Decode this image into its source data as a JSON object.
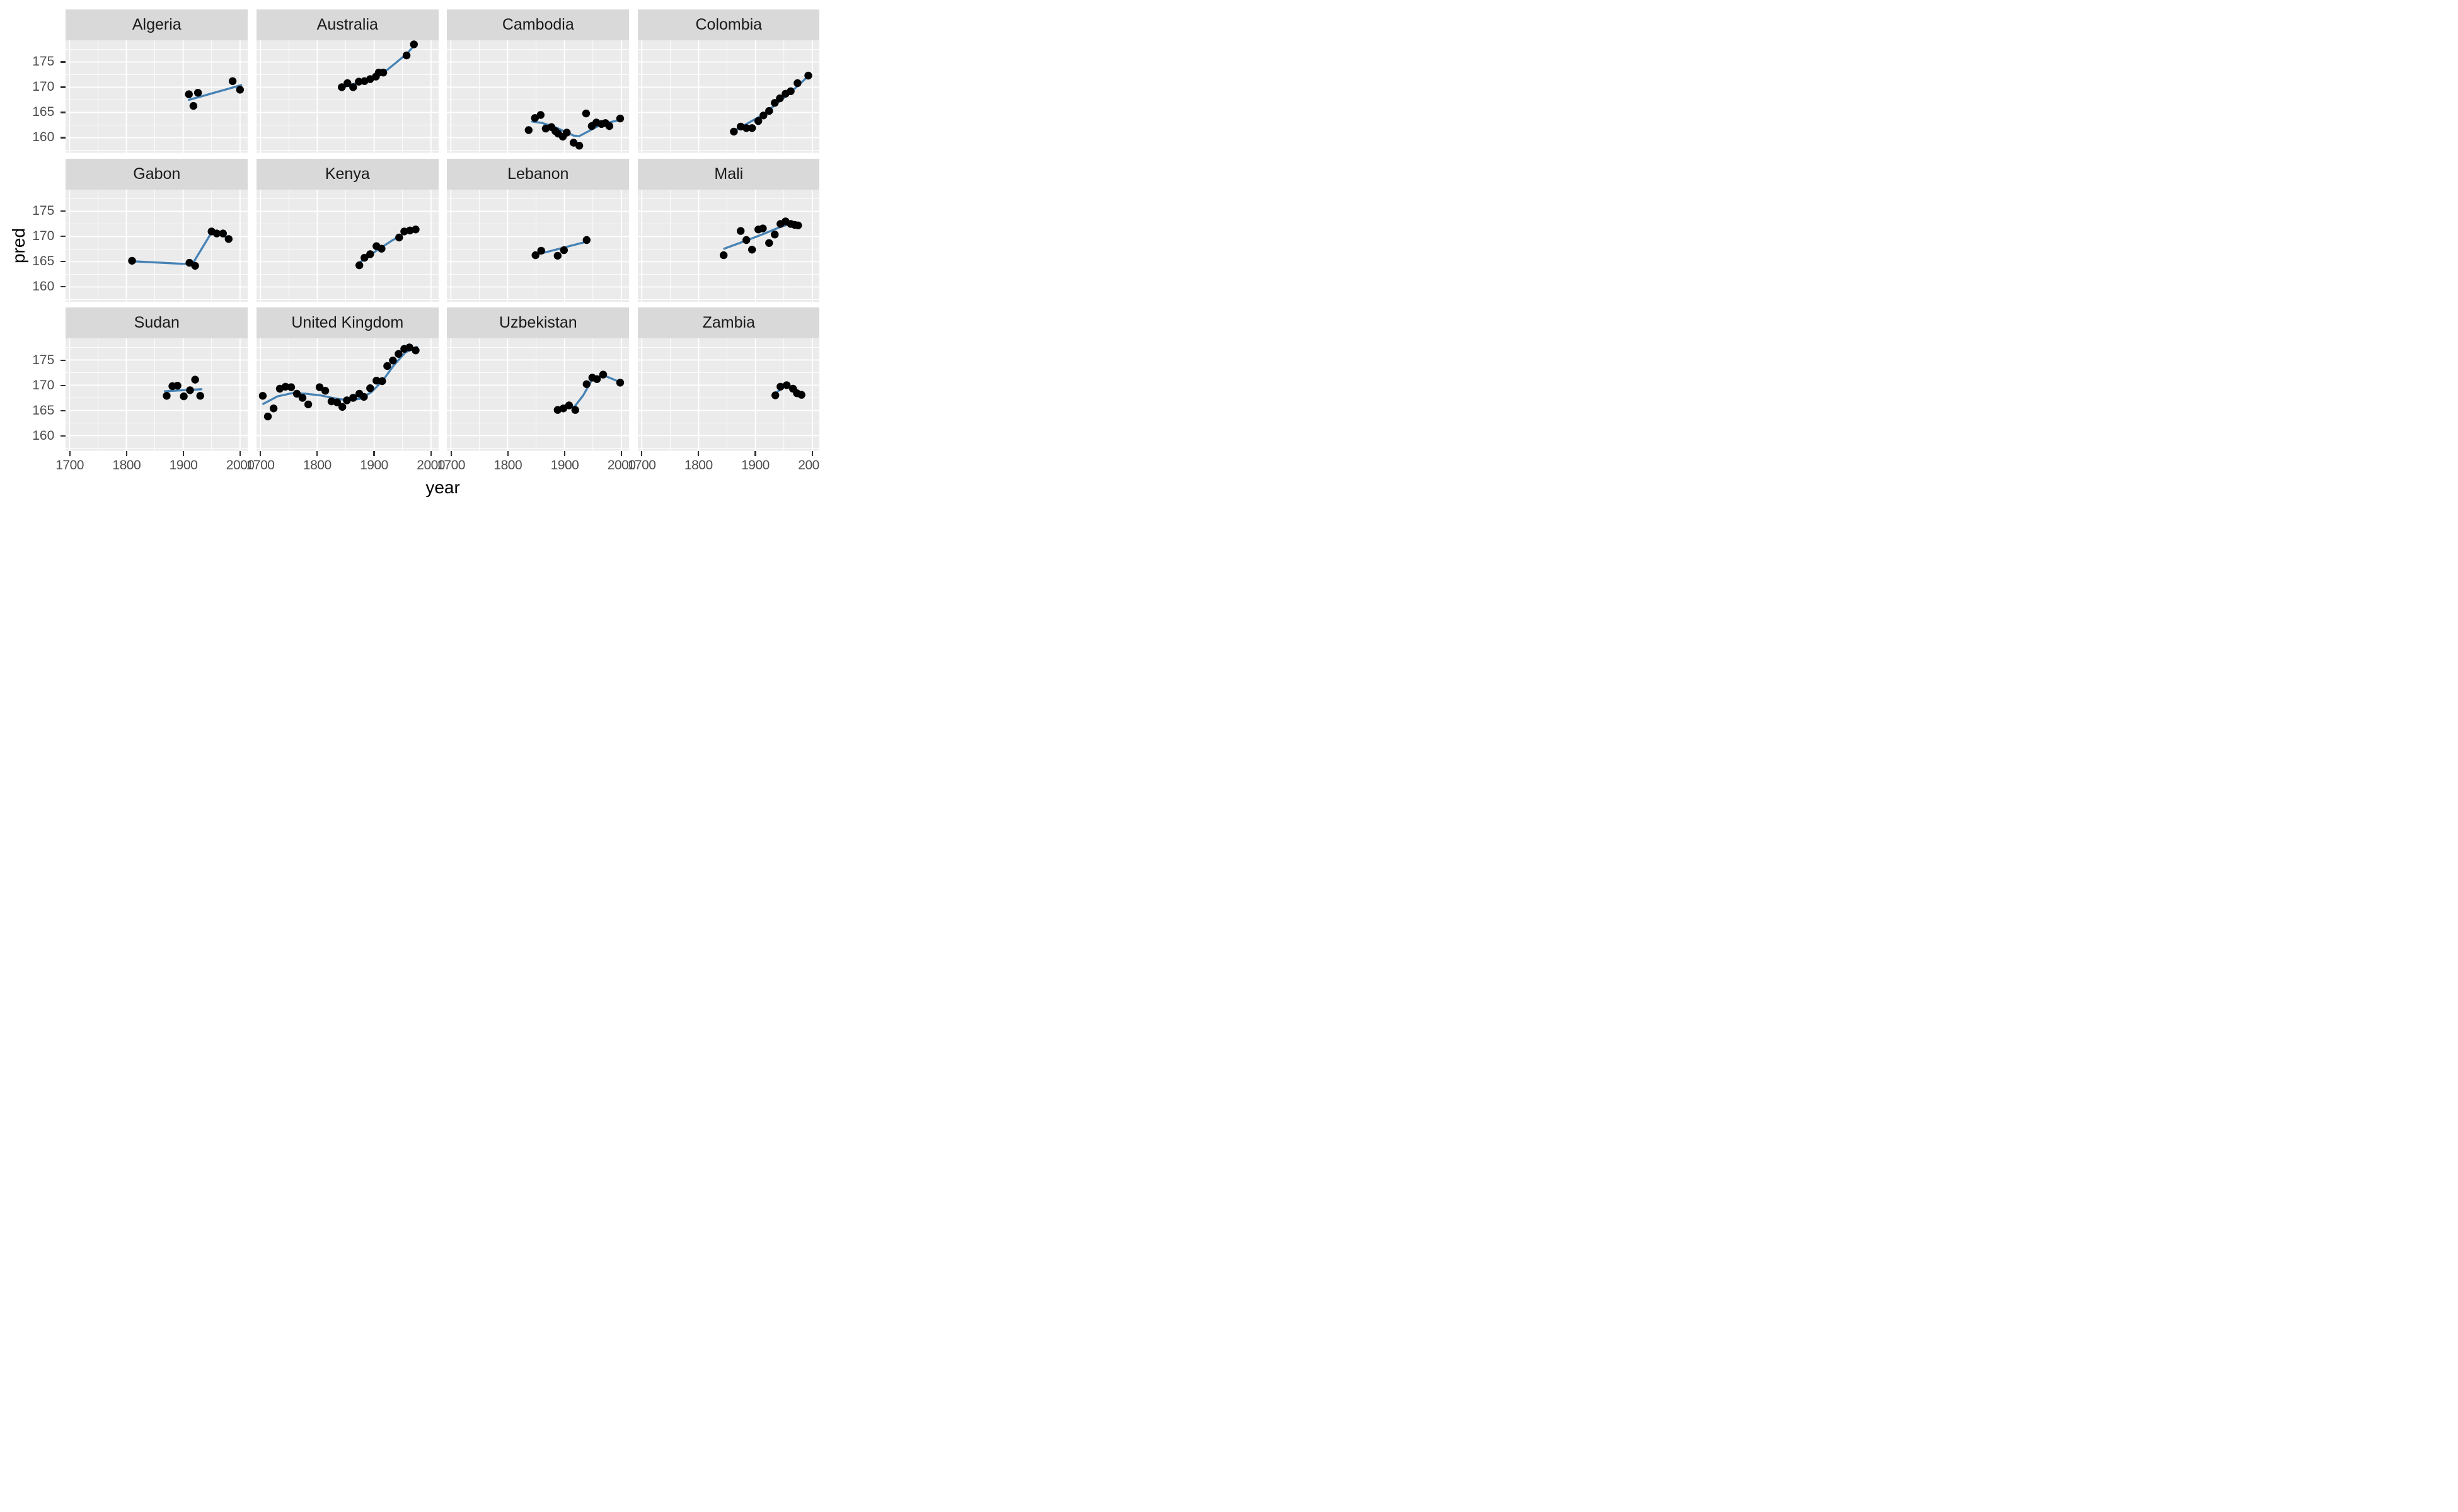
{
  "chart_data": {
    "type": "scatter",
    "title": "",
    "xlabel": "year",
    "ylabel": "pred",
    "legend": false,
    "grid": true,
    "x_ticks": [
      1700,
      1800,
      1900,
      2000
    ],
    "x_minor_gridlines": [
      1750,
      1850,
      1950
    ],
    "y_ticks": [
      175,
      170,
      165,
      160
    ],
    "y_minor_gridlines": [
      157.5,
      162.5,
      167.5,
      172.5,
      177.5
    ],
    "x_domain": [
      1693,
      2013.5
    ],
    "y_domain": [
      157.0,
      179.3
    ],
    "colors": {
      "point": "#000000",
      "smooth_line": "#4682B4",
      "panel_background": "#EBEBEB",
      "grid_major": "#FFFFFF",
      "grid_minor": "#FFFFFF",
      "strip_background": "#D9D9D9",
      "strip_text": "#1A1A1A",
      "tick_label": "#4D4D4D",
      "axis_title": "#000000",
      "tick_mark": "#333333"
    },
    "facets": [
      {
        "name": "Algeria",
        "points": [
          [
            1910,
            168.6
          ],
          [
            1918,
            166.3
          ],
          [
            1926,
            168.9
          ],
          [
            1987,
            171.2
          ],
          [
            2000,
            169.5
          ]
        ],
        "smooth": [
          [
            1910,
            167.5
          ],
          [
            2002,
            170.4
          ]
        ]
      },
      {
        "name": "Australia",
        "points": [
          [
            1843,
            170.0
          ],
          [
            1853,
            170.8
          ],
          [
            1863,
            170.0
          ],
          [
            1873,
            171.1
          ],
          [
            1883,
            171.2
          ],
          [
            1893,
            171.6
          ],
          [
            1903,
            172.1
          ],
          [
            1908,
            172.9
          ],
          [
            1916,
            172.9
          ],
          [
            1957,
            176.3
          ],
          [
            1970,
            178.5
          ]
        ],
        "smooth": [
          [
            1843,
            169.9
          ],
          [
            1860,
            170.5
          ],
          [
            1880,
            171.2
          ],
          [
            1900,
            172.0
          ],
          [
            1916,
            172.8
          ],
          [
            1940,
            175.0
          ],
          [
            1957,
            176.6
          ],
          [
            1971,
            178.3
          ]
        ]
      },
      {
        "name": "Cambodia",
        "points": [
          [
            1837,
            161.5
          ],
          [
            1848,
            163.9
          ],
          [
            1858,
            164.5
          ],
          [
            1867,
            161.8
          ],
          [
            1877,
            162.1
          ],
          [
            1884,
            161.3
          ],
          [
            1889,
            160.8
          ],
          [
            1897,
            160.2
          ],
          [
            1904,
            161.0
          ],
          [
            1916,
            159.0
          ],
          [
            1926,
            158.4
          ],
          [
            1938,
            164.8
          ],
          [
            1948,
            162.3
          ],
          [
            1956,
            163.0
          ],
          [
            1965,
            162.7
          ],
          [
            1972,
            162.9
          ],
          [
            1979,
            162.3
          ],
          [
            1998,
            163.8
          ]
        ],
        "smooth": [
          [
            1843,
            163.2
          ],
          [
            1861,
            162.9
          ],
          [
            1881,
            162.2
          ],
          [
            1901,
            161.2
          ],
          [
            1916,
            160.4
          ],
          [
            1926,
            160.3
          ],
          [
            1941,
            161.2
          ],
          [
            1961,
            162.4
          ],
          [
            1981,
            163.1
          ],
          [
            1998,
            163.5
          ]
        ]
      },
      {
        "name": "Colombia",
        "points": [
          [
            1862,
            161.2
          ],
          [
            1874,
            162.2
          ],
          [
            1884,
            161.9
          ],
          [
            1894,
            161.9
          ],
          [
            1905,
            163.3
          ],
          [
            1914,
            164.4
          ],
          [
            1924,
            165.3
          ],
          [
            1934,
            166.9
          ],
          [
            1943,
            167.8
          ],
          [
            1953,
            168.7
          ],
          [
            1962,
            169.2
          ],
          [
            1974,
            170.8
          ],
          [
            1993,
            172.3
          ]
        ],
        "smooth": [
          [
            1862,
            161.3
          ],
          [
            1914,
            164.6
          ],
          [
            1964,
            169.2
          ],
          [
            1994,
            172.3
          ]
        ]
      },
      {
        "name": "Gabon",
        "points": [
          [
            1810,
            165.2
          ],
          [
            1911,
            164.8
          ],
          [
            1921,
            164.2
          ],
          [
            1950,
            171.0
          ],
          [
            1959,
            170.6
          ],
          [
            1970,
            170.6
          ],
          [
            1980,
            169.5
          ]
        ],
        "smooth": [
          [
            1810,
            165.1
          ],
          [
            1916,
            164.5
          ],
          [
            1950,
            170.8
          ],
          [
            1980,
            169.7
          ]
        ]
      },
      {
        "name": "Kenya",
        "points": [
          [
            1874,
            164.3
          ],
          [
            1883,
            165.8
          ],
          [
            1893,
            166.5
          ],
          [
            1904,
            168.1
          ],
          [
            1913,
            167.6
          ],
          [
            1944,
            169.8
          ],
          [
            1953,
            171.0
          ],
          [
            1963,
            171.2
          ],
          [
            1973,
            171.4
          ]
        ],
        "smooth": [
          [
            1874,
            164.8
          ],
          [
            1900,
            166.9
          ],
          [
            1930,
            169.1
          ],
          [
            1953,
            170.6
          ],
          [
            1975,
            171.4
          ]
        ]
      },
      {
        "name": "Lebanon",
        "points": [
          [
            1849,
            166.3
          ],
          [
            1859,
            167.2
          ],
          [
            1888,
            166.2
          ],
          [
            1899,
            167.3
          ],
          [
            1939,
            169.3
          ]
        ],
        "smooth": [
          [
            1850,
            166.4
          ],
          [
            1940,
            169.0
          ]
        ]
      },
      {
        "name": "Mali",
        "points": [
          [
            1844,
            166.3
          ],
          [
            1874,
            171.1
          ],
          [
            1884,
            169.3
          ],
          [
            1894,
            167.4
          ],
          [
            1905,
            171.4
          ],
          [
            1913,
            171.6
          ],
          [
            1924,
            168.7
          ],
          [
            1934,
            170.4
          ],
          [
            1944,
            172.5
          ],
          [
            1953,
            173.0
          ],
          [
            1962,
            172.5
          ],
          [
            1969,
            172.3
          ],
          [
            1975,
            172.2
          ]
        ],
        "smooth": [
          [
            1845,
            167.6
          ],
          [
            1884,
            169.2
          ],
          [
            1914,
            170.5
          ],
          [
            1944,
            171.9
          ],
          [
            1964,
            172.6
          ],
          [
            1977,
            172.4
          ]
        ]
      },
      {
        "name": "Sudan",
        "points": [
          [
            1871,
            167.9
          ],
          [
            1881,
            169.8
          ],
          [
            1890,
            169.9
          ],
          [
            1901,
            167.8
          ],
          [
            1912,
            169.0
          ],
          [
            1921,
            171.1
          ],
          [
            1930,
            167.9
          ]
        ],
        "smooth": [
          [
            1868,
            168.8
          ],
          [
            1932,
            169.2
          ]
        ]
      },
      {
        "name": "United Kingdom",
        "points": [
          [
            1704,
            167.9
          ],
          [
            1713,
            163.8
          ],
          [
            1723,
            165.4
          ],
          [
            1734,
            169.3
          ],
          [
            1744,
            169.7
          ],
          [
            1754,
            169.6
          ],
          [
            1764,
            168.3
          ],
          [
            1774,
            167.5
          ],
          [
            1784,
            166.2
          ],
          [
            1804,
            169.6
          ],
          [
            1814,
            168.9
          ],
          [
            1825,
            166.8
          ],
          [
            1835,
            166.6
          ],
          [
            1844,
            165.7
          ],
          [
            1852,
            167.0
          ],
          [
            1863,
            167.5
          ],
          [
            1874,
            168.3
          ],
          [
            1882,
            167.7
          ],
          [
            1893,
            169.4
          ],
          [
            1904,
            170.9
          ],
          [
            1914,
            170.8
          ],
          [
            1923,
            173.8
          ],
          [
            1933,
            174.9
          ],
          [
            1943,
            176.2
          ],
          [
            1953,
            177.2
          ],
          [
            1962,
            177.5
          ],
          [
            1973,
            176.9
          ]
        ],
        "smooth": [
          [
            1705,
            166.3
          ],
          [
            1730,
            167.8
          ],
          [
            1755,
            168.4
          ],
          [
            1780,
            168.3
          ],
          [
            1805,
            168.0
          ],
          [
            1830,
            167.4
          ],
          [
            1855,
            167.0
          ],
          [
            1875,
            167.3
          ],
          [
            1895,
            168.6
          ],
          [
            1915,
            170.9
          ],
          [
            1935,
            174.0
          ],
          [
            1955,
            176.5
          ],
          [
            1975,
            177.6
          ]
        ]
      },
      {
        "name": "Uzbekistan",
        "points": [
          [
            1888,
            165.1
          ],
          [
            1898,
            165.4
          ],
          [
            1908,
            166.0
          ],
          [
            1919,
            165.1
          ],
          [
            1939,
            170.2
          ],
          [
            1949,
            171.5
          ],
          [
            1957,
            171.2
          ],
          [
            1968,
            172.1
          ],
          [
            1998,
            170.5
          ]
        ],
        "smooth": [
          [
            1888,
            165.2
          ],
          [
            1918,
            165.8
          ],
          [
            1933,
            168.0
          ],
          [
            1949,
            171.2
          ],
          [
            1968,
            172.0
          ],
          [
            1998,
            170.6
          ]
        ]
      },
      {
        "name": "Zambia",
        "points": [
          [
            1935,
            168.0
          ],
          [
            1944,
            169.7
          ],
          [
            1955,
            170.0
          ],
          [
            1966,
            169.3
          ],
          [
            1973,
            168.4
          ],
          [
            1981,
            168.1
          ]
        ],
        "smooth": [
          [
            1935,
            168.4
          ],
          [
            1952,
            169.8
          ],
          [
            1969,
            169.0
          ],
          [
            1982,
            168.2
          ]
        ]
      }
    ]
  }
}
